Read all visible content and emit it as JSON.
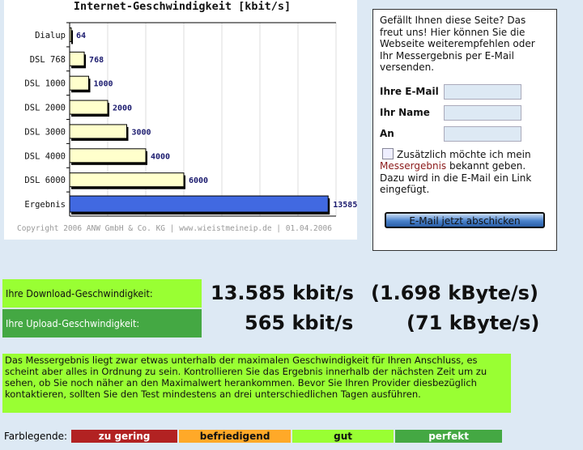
{
  "chart_data": {
    "type": "bar",
    "orientation": "horizontal",
    "title": "Internet-Geschwindigkeit [kbit/s]",
    "categories": [
      "Dialup",
      "DSL 768",
      "DSL 1000",
      "DSL 2000",
      "DSL 3000",
      "DSL 4000",
      "DSL 6000",
      "Ergebnis"
    ],
    "values": [
      64,
      768,
      1000,
      2000,
      3000,
      4000,
      6000,
      13585
    ],
    "data_labels": [
      "64",
      "768",
      "1000",
      "2000",
      "3000",
      "4000",
      "6000",
      "13585"
    ],
    "xlim": [
      0,
      14000
    ],
    "grid": true,
    "colors": {
      "reference": "#ffffcc",
      "result": "#4169e1",
      "label": "#1a1a6e"
    }
  },
  "copyright": "Copyright 2006 ANW GmbH & Co. KG | www.wieistmeineip.de | 01.04.2006",
  "form": {
    "intro": "Gefällt Ihnen diese Seite? Das freut uns! Hier können Sie die Webseite weiterempfehlen oder Ihr Messergebnis per E-Mail versenden.",
    "email_label": "Ihre E-Mail",
    "email_value": "",
    "name_label": "Ihr Name",
    "name_value": "",
    "to_label": "An",
    "to_value": "",
    "checkbox_text_1": "Zusätzlich möchte ich mein",
    "checkbox_link": "Messergebnis",
    "checkbox_text_2": "bekannt geben. Dazu wird in die E-Mail ein Link eingefügt.",
    "checkbox_checked": false,
    "send_button": "E-Mail jetzt abschicken"
  },
  "results": {
    "download_label": "Ihre Download-Geschwindigkeit:",
    "download_kbit": "13.585 kbit/s",
    "download_kbyte": "(1.698 kByte/s)",
    "upload_label": "Ihre Upload-Geschwindigkeit:",
    "upload_kbit": "565 kbit/s",
    "upload_kbyte": "(71 kByte/s)"
  },
  "message": "Das Messergebnis liegt zwar etwas unterhalb der maximalen Geschwindigkeit für Ihren Anschluss, es scheint aber alles in Ordnung zu sein. Kontrollieren Sie das Ergebnis innerhalb der nächsten Zeit um zu sehen, ob Sie noch näher an den Maximalwert herankommen. Bevor Sie Ihren Provider diesbezüglich kontaktieren, sollten Sie den Test mindestens an drei unterschiedlichen Tagen ausführen.",
  "legend": {
    "label": "Farblegende:",
    "items": [
      {
        "label": "zu gering",
        "color": "#b22222",
        "text_color": "#ffffff"
      },
      {
        "label": "befriedigend",
        "color": "#ffa928",
        "text_color": "#111111"
      },
      {
        "label": "gut",
        "color": "#99ff33",
        "text_color": "#111111"
      },
      {
        "label": "perfekt",
        "color": "#44a843",
        "text_color": "#ffffff"
      }
    ]
  }
}
